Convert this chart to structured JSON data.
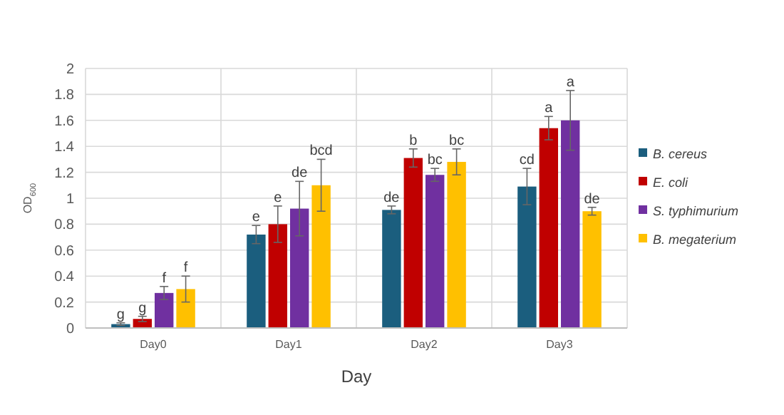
{
  "chart_data": {
    "type": "bar",
    "xlabel": "Day",
    "ylabel": "OD$_{600}$",
    "categories": [
      "Day0",
      "Day1",
      "Day2",
      "Day3"
    ],
    "ylim": [
      0,
      2
    ],
    "yticks": [
      0,
      0.2,
      0.4,
      0.6,
      0.8,
      1,
      1.2,
      1.4,
      1.6,
      1.8,
      2
    ],
    "grid": true,
    "legend": "right",
    "series": [
      {
        "name": "B. cereus",
        "color": "#1b5e7e",
        "values": [
          0.03,
          0.72,
          0.91,
          1.09
        ],
        "errors": [
          0.01,
          0.07,
          0.03,
          0.14
        ],
        "value_labels": [
          "g",
          "e",
          "de",
          "cd"
        ]
      },
      {
        "name": "E. coli",
        "color": "#c00000",
        "values": [
          0.07,
          0.8,
          1.31,
          1.54
        ],
        "errors": [
          0.02,
          0.14,
          0.07,
          0.09
        ],
        "value_labels": [
          "g",
          "e",
          "b",
          "a"
        ]
      },
      {
        "name": "S. typhimurium",
        "color": "#7030a0",
        "values": [
          0.27,
          0.92,
          1.18,
          1.6
        ],
        "errors": [
          0.05,
          0.21,
          0.05,
          0.23
        ],
        "value_labels": [
          "f",
          "de",
          "bc",
          "a"
        ]
      },
      {
        "name": "B. megaterium",
        "color": "#ffc000",
        "values": [
          0.3,
          1.1,
          1.28,
          0.9
        ],
        "errors": [
          0.1,
          0.2,
          0.1,
          0.03
        ],
        "value_labels": [
          "f",
          "bcd",
          "bc",
          "de"
        ]
      }
    ]
  }
}
